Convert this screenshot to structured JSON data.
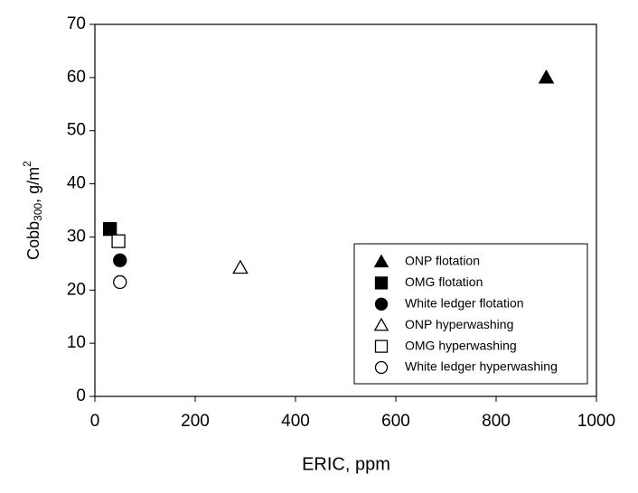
{
  "chart_data": {
    "type": "scatter",
    "xlabel": "ERIC, ppm",
    "ylabel": {
      "base": "Cobb",
      "sub": "300",
      "rest": ", g/m",
      "sup": "2"
    },
    "xlim": [
      0,
      1000
    ],
    "xticks": [
      0,
      200,
      400,
      600,
      800,
      1000
    ],
    "ylim": [
      0,
      70
    ],
    "yticks": [
      0,
      10,
      20,
      30,
      40,
      50,
      60,
      70
    ],
    "legend": "lower right",
    "series": [
      {
        "name": "ONP flotation",
        "marker": "triangle",
        "filled": true,
        "color": "#000000",
        "x": [
          900
        ],
        "y": [
          60
        ]
      },
      {
        "name": "OMG flotation",
        "marker": "square",
        "filled": true,
        "color": "#000000",
        "x": [
          30
        ],
        "y": [
          31.5
        ]
      },
      {
        "name": "White ledger flotation",
        "marker": "circle",
        "filled": true,
        "color": "#000000",
        "x": [
          50
        ],
        "y": [
          25.6
        ]
      },
      {
        "name": "ONP hyperwashing",
        "marker": "triangle",
        "filled": false,
        "color": "#000000",
        "x": [
          290
        ],
        "y": [
          24.2
        ]
      },
      {
        "name": "OMG hyperwashing",
        "marker": "square",
        "filled": false,
        "color": "#000000",
        "x": [
          47
        ],
        "y": [
          29.2
        ]
      },
      {
        "name": "White ledger hyperwashing",
        "marker": "circle",
        "filled": false,
        "color": "#000000",
        "x": [
          50
        ],
        "y": [
          21.5
        ]
      }
    ]
  }
}
